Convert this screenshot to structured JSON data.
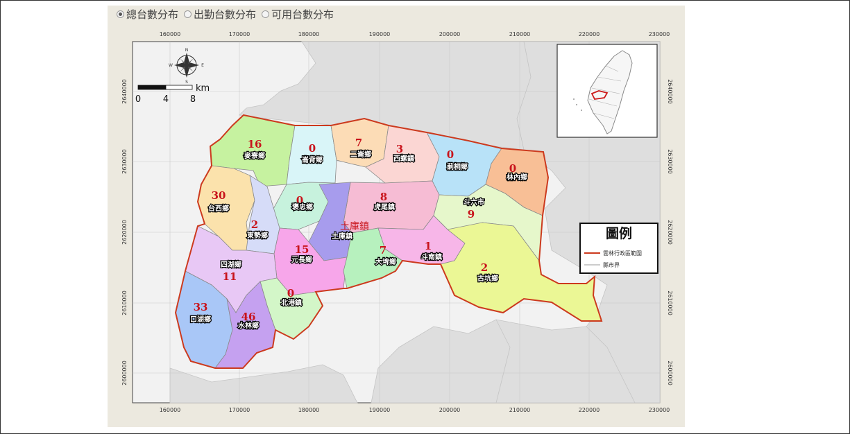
{
  "radio_options": [
    {
      "label": "總台數分布",
      "selected": true
    },
    {
      "label": "出勤台數分布",
      "selected": false
    },
    {
      "label": "可用台數分布",
      "selected": false
    }
  ],
  "map": {
    "x_ticks": [
      "160000",
      "170000",
      "180000",
      "190000",
      "200000",
      "210000",
      "220000",
      "230000"
    ],
    "y_ticks": [
      "2640000",
      "2630000",
      "2620000",
      "2610000",
      "2600000"
    ],
    "compass": {
      "n": "N",
      "s": "S",
      "e": "E",
      "w": "W"
    },
    "scale_bar": {
      "unit": "km",
      "labels": [
        "0",
        "4",
        "8"
      ]
    },
    "highlight_label": "土庫鎮",
    "townships": [
      {
        "name": "麥寮鄉",
        "count": "16",
        "color": "#c6f2a0"
      },
      {
        "name": "崙背鄉",
        "count": "0",
        "color": "#d9f5f8"
      },
      {
        "name": "二崙鄉",
        "count": "7",
        "color": "#fcdcb6"
      },
      {
        "name": "西螺鎮",
        "count": "3",
        "color": "#fbd6d3"
      },
      {
        "name": "莿桐鄉",
        "count": "0",
        "color": "#b8e2f8"
      },
      {
        "name": "林內鄉",
        "count": "0",
        "color": "#f8bf96"
      },
      {
        "name": "台西鄉",
        "count": "30",
        "color": "#fbe2ac"
      },
      {
        "name": "褒忠鄉",
        "count": "0",
        "color": "#c7f2dd"
      },
      {
        "name": "虎尾鎮",
        "count": "8",
        "color": "#f6bcd4"
      },
      {
        "name": "斗六市",
        "count": "9",
        "color": "#e6f7cb"
      },
      {
        "name": "東勢鄉",
        "count": "2",
        "color": "#d6dcf8"
      },
      {
        "name": "土庫鎮",
        "count": "",
        "color": "#a79ced"
      },
      {
        "name": "元長鄉",
        "count": "15",
        "color": "#f7a6ea"
      },
      {
        "name": "大埤鄉",
        "count": "7",
        "color": "#b7f1be"
      },
      {
        "name": "斗南鎮",
        "count": "1",
        "color": "#f7b6e8"
      },
      {
        "name": "古坑鄉",
        "count": "2",
        "color": "#ebf795"
      },
      {
        "name": "四湖鄉",
        "count": "11",
        "color": "#e8c8f5"
      },
      {
        "name": "北港鎮",
        "count": "0",
        "color": "#d3f6c8"
      },
      {
        "name": "口湖鄉",
        "count": "33",
        "color": "#a9c7f7"
      },
      {
        "name": "水林鄉",
        "count": "46",
        "color": "#c5a1f0"
      }
    ],
    "legend": {
      "title": "圖例",
      "items": [
        {
          "label": "雲林行政區範圍",
          "color": "#cc3a1e"
        },
        {
          "label": "縣市界",
          "color": "#bbbbbb"
        }
      ]
    }
  }
}
